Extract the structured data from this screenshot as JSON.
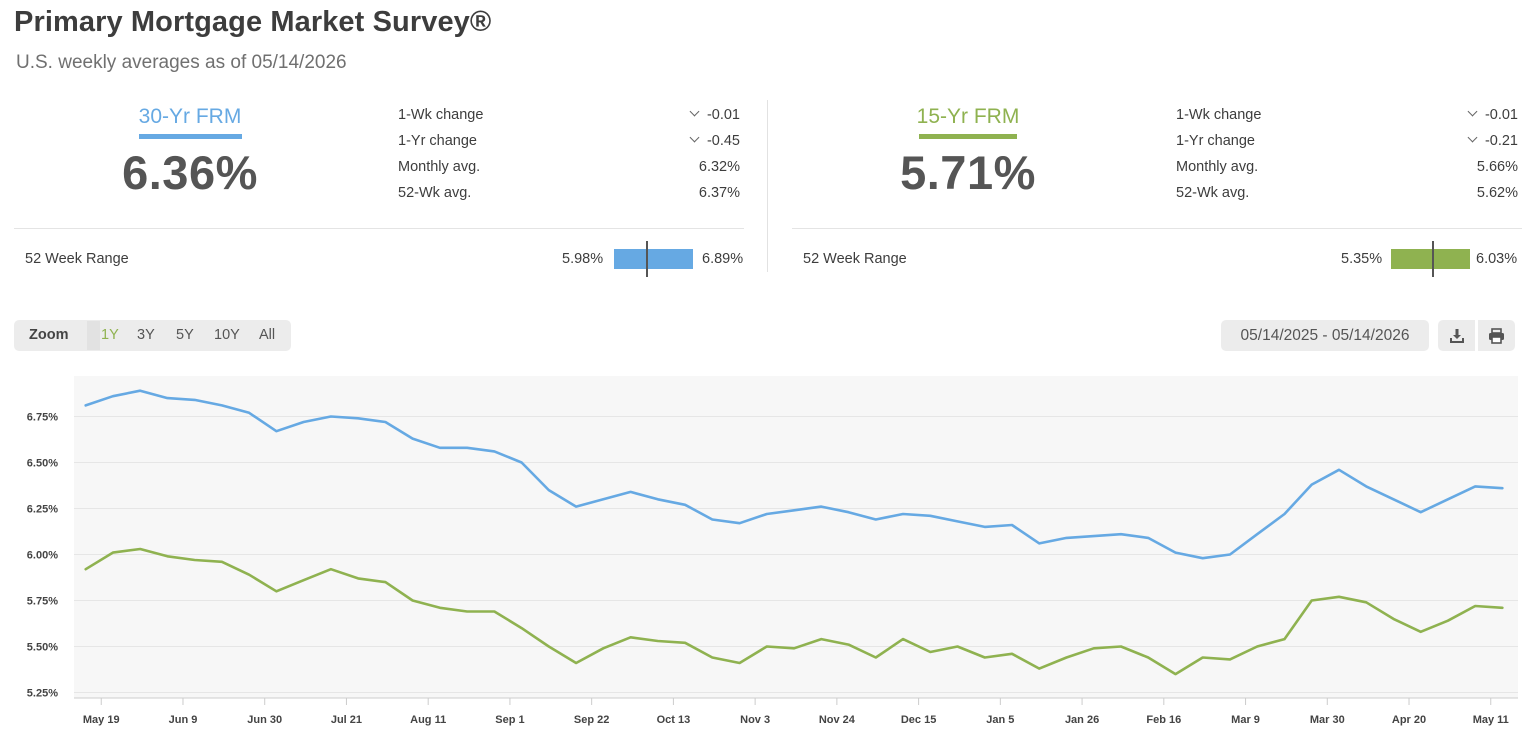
{
  "header": {
    "title": "Primary Mortgage Market Survey®",
    "subtitle": "U.S. weekly averages as of 05/14/2026"
  },
  "colors": {
    "frm30": "#66a9e3",
    "frm15": "#8fb250",
    "text": "#3d3d3d",
    "grid": "#e6e6e6",
    "plot_bg": "#f7f7f7"
  },
  "panels": [
    {
      "label": "30-Yr FRM",
      "value": "6.36%",
      "stats": [
        {
          "label": "1-Wk change",
          "value": "-0.01",
          "chevron": true
        },
        {
          "label": "1-Yr change",
          "value": "-0.45",
          "chevron": true
        },
        {
          "label": "Monthly avg.",
          "value": "6.32%",
          "chevron": false
        },
        {
          "label": "52-Wk avg.",
          "value": "6.37%",
          "chevron": false
        }
      ],
      "range": {
        "label": "52 Week Range",
        "min": "5.98%",
        "max": "6.89%",
        "current": 6.36,
        "low": 5.98,
        "high": 6.89
      }
    },
    {
      "label": "15-Yr FRM",
      "value": "5.71%",
      "stats": [
        {
          "label": "1-Wk change",
          "value": "-0.01",
          "chevron": true
        },
        {
          "label": "1-Yr change",
          "value": "-0.21",
          "chevron": true
        },
        {
          "label": "Monthly avg.",
          "value": "5.66%",
          "chevron": false
        },
        {
          "label": "52-Wk avg.",
          "value": "5.62%",
          "chevron": false
        }
      ],
      "range": {
        "label": "52 Week Range",
        "min": "5.35%",
        "max": "6.03%",
        "current": 5.71,
        "low": 5.35,
        "high": 6.03
      }
    }
  ],
  "toolbar": {
    "zoom_label": "Zoom",
    "zoom_options": [
      "1Y",
      "3Y",
      "5Y",
      "10Y",
      "All"
    ],
    "zoom_selected": "1Y",
    "date_range": "05/14/2025 - 05/14/2026",
    "download_icon": "download-icon",
    "print_icon": "print-icon"
  },
  "chart_data": {
    "type": "line",
    "y_ticks": [
      "5.25%",
      "5.50%",
      "5.75%",
      "6.00%",
      "6.25%",
      "6.50%",
      "6.75%"
    ],
    "x_tick_labels": [
      "May 19",
      "Jun 9",
      "Jun 30",
      "Jul 21",
      "Aug 11",
      "Sep 1",
      "Sep 22",
      "Oct 13",
      "Nov 3",
      "Nov 24",
      "Dec 15",
      "Jan 5",
      "Jan 26",
      "Feb 16",
      "Mar 9",
      "Mar 30",
      "Apr 20",
      "May 11"
    ],
    "x": [
      "2025-05-15",
      "2025-05-22",
      "2025-05-29",
      "2025-06-05",
      "2025-06-12",
      "2025-06-19",
      "2025-06-26",
      "2025-07-03",
      "2025-07-10",
      "2025-07-17",
      "2025-07-24",
      "2025-07-31",
      "2025-08-07",
      "2025-08-14",
      "2025-08-21",
      "2025-08-28",
      "2025-09-04",
      "2025-09-11",
      "2025-09-18",
      "2025-09-25",
      "2025-10-02",
      "2025-10-09",
      "2025-10-16",
      "2025-10-23",
      "2025-10-30",
      "2025-11-06",
      "2025-11-13",
      "2025-11-20",
      "2025-11-27",
      "2025-12-04",
      "2025-12-11",
      "2025-12-18",
      "2025-12-25",
      "2026-01-01",
      "2026-01-08",
      "2026-01-15",
      "2026-01-22",
      "2026-01-29",
      "2026-02-05",
      "2026-02-12",
      "2026-02-19",
      "2026-02-26",
      "2026-03-05",
      "2026-03-12",
      "2026-03-19",
      "2026-03-26",
      "2026-04-02",
      "2026-04-09",
      "2026-04-16",
      "2026-04-23",
      "2026-04-30",
      "2026-05-07",
      "2026-05-14"
    ],
    "series": [
      {
        "name": "30-Yr FRM",
        "color": "#66a9e3",
        "values": [
          6.81,
          6.86,
          6.89,
          6.85,
          6.84,
          6.81,
          6.77,
          6.67,
          6.72,
          6.75,
          6.74,
          6.72,
          6.63,
          6.58,
          6.58,
          6.56,
          6.5,
          6.35,
          6.26,
          6.3,
          6.34,
          6.3,
          6.27,
          6.19,
          6.17,
          6.22,
          6.24,
          6.26,
          6.23,
          6.19,
          6.22,
          6.21,
          6.18,
          6.15,
          6.16,
          6.06,
          6.09,
          6.1,
          6.11,
          6.09,
          6.01,
          5.98,
          6.0,
          6.11,
          6.22,
          6.38,
          6.46,
          6.37,
          6.3,
          6.23,
          6.3,
          6.37,
          6.36
        ]
      },
      {
        "name": "15-Yr FRM",
        "color": "#8fb250",
        "values": [
          5.92,
          6.01,
          6.03,
          5.99,
          5.97,
          5.96,
          5.89,
          5.8,
          5.86,
          5.92,
          5.87,
          5.85,
          5.75,
          5.71,
          5.69,
          5.69,
          5.6,
          5.5,
          5.41,
          5.49,
          5.55,
          5.53,
          5.52,
          5.44,
          5.41,
          5.5,
          5.49,
          5.54,
          5.51,
          5.44,
          5.54,
          5.47,
          5.5,
          5.44,
          5.46,
          5.38,
          5.44,
          5.49,
          5.5,
          5.44,
          5.35,
          5.44,
          5.43,
          5.5,
          5.54,
          5.75,
          5.77,
          5.74,
          5.65,
          5.58,
          5.64,
          5.72,
          5.71
        ]
      }
    ],
    "ylim": [
      5.22,
      6.97
    ]
  }
}
